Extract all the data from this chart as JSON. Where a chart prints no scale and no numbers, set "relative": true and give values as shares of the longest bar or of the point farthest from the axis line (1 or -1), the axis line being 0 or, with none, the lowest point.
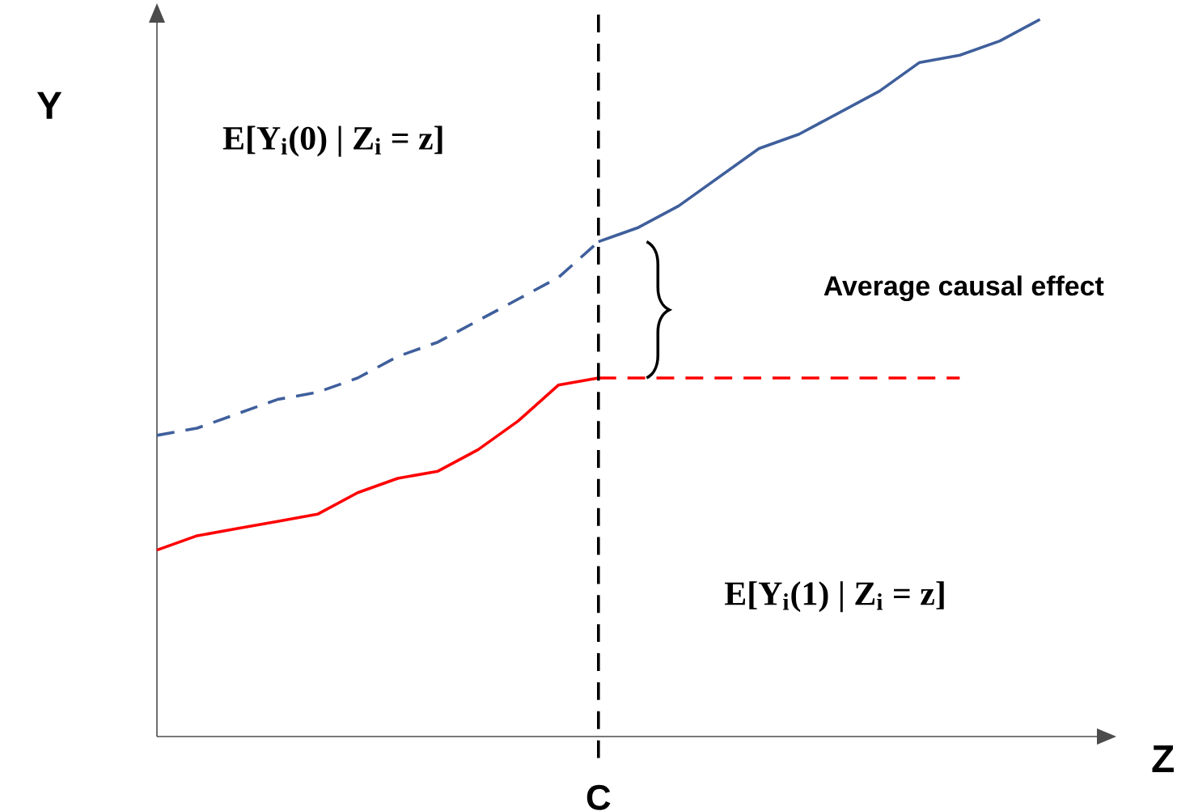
{
  "chart_data": {
    "type": "line",
    "relative": true,
    "xlabel": "Z",
    "ylabel": "Y",
    "legend": false,
    "marker": "none",
    "categories": [
      null,
      null,
      null,
      null,
      null,
      null,
      null,
      null,
      null,
      null,
      null,
      null,
      null,
      null,
      null,
      null,
      null,
      null,
      null,
      null,
      null,
      null,
      null
    ],
    "series": [
      {
        "color": "#3f5f9c",
        "line_style": "dashed",
        "values": [
          0.42,
          0.43,
          0.45,
          0.47,
          0.48,
          0.5,
          0.53,
          0.55,
          0.58,
          0.61,
          0.64,
          0.69,
          null,
          null,
          null,
          null,
          null,
          null,
          null,
          null,
          null,
          null,
          null
        ]
      },
      {
        "color": "#3f5f9c",
        "line_style": "solid",
        "values": [
          null,
          null,
          null,
          null,
          null,
          null,
          null,
          null,
          null,
          null,
          null,
          0.69,
          0.71,
          0.74,
          0.78,
          0.82,
          0.84,
          0.87,
          0.9,
          0.94,
          0.95,
          0.97,
          1.0
        ]
      },
      {
        "color": "#ff0000",
        "line_style": "solid",
        "values": [
          0.26,
          0.28,
          0.29,
          0.3,
          0.31,
          0.34,
          0.36,
          0.37,
          0.4,
          0.44,
          0.49,
          0.5,
          null,
          null,
          null,
          null,
          null,
          null,
          null,
          null,
          null,
          null,
          null
        ]
      },
      {
        "color": "#ff0000",
        "line_style": "dashed",
        "values": [
          null,
          null,
          null,
          null,
          null,
          null,
          null,
          null,
          null,
          null,
          null,
          0.5,
          0.5,
          0.5,
          0.5,
          0.5,
          0.5,
          0.5,
          0.5,
          0.5,
          0.5,
          null,
          null
        ]
      }
    ],
    "annotations": [
      "E[Y$_{i}$(0) | Z$_{i}$ = z]",
      "E[Y$_{i}$(1) | Z$_{i}$ = z]",
      "Average causal effect",
      "C"
    ]
  }
}
